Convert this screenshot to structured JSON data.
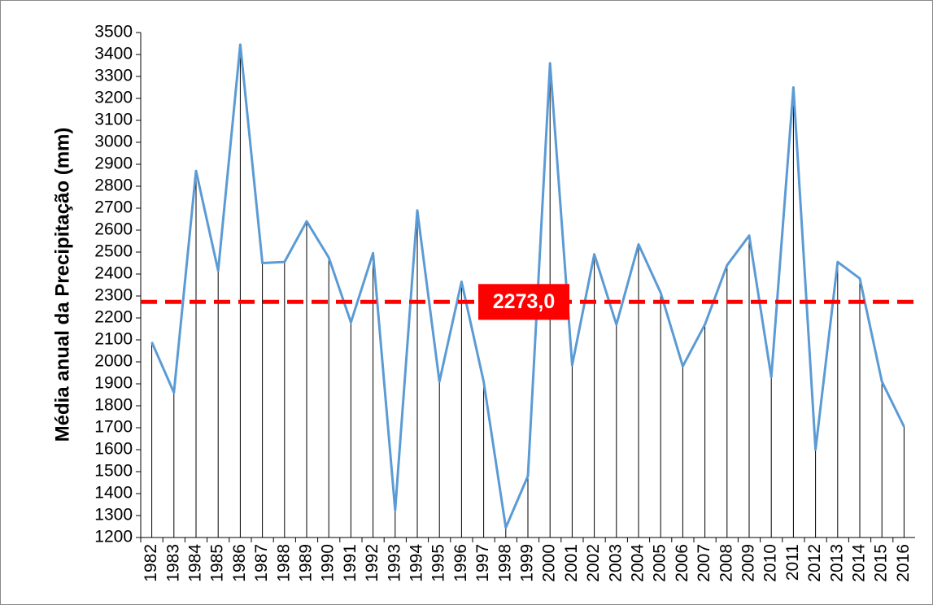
{
  "chart_data": {
    "type": "line",
    "y_label": "Média anual da Precipitação (mm)",
    "categories": [
      "1982",
      "1983",
      "1984",
      "1985",
      "1986",
      "1987",
      "1988",
      "1989",
      "1990",
      "1991",
      "1992",
      "1993",
      "1994",
      "1995",
      "1996",
      "1997",
      "1998",
      "1999",
      "2000",
      "2001",
      "2002",
      "2003",
      "2004",
      "2005",
      "2006",
      "2007",
      "2008",
      "2009",
      "2010",
      "2011",
      "2012",
      "2013",
      "2014",
      "2015",
      "2016"
    ],
    "series": [
      {
        "color": "#5b9bd5",
        "values": [
          2090,
          1860,
          2870,
          2415,
          3445,
          2450,
          2455,
          2640,
          2475,
          2180,
          2495,
          1325,
          2690,
          1910,
          2365,
          1910,
          1245,
          1480,
          3360,
          1985,
          2490,
          2170,
          2535,
          2315,
          1980,
          2170,
          2440,
          2575,
          1930,
          3250,
          1600,
          2455,
          2380,
          1910,
          1705
        ]
      }
    ],
    "mean": {
      "value": 2273,
      "label": "2273,0",
      "color": "#ff0000"
    },
    "ylim": [
      1200,
      3500
    ],
    "yticks": [
      1200,
      1300,
      1400,
      1500,
      1600,
      1700,
      1800,
      1900,
      2000,
      2100,
      2200,
      2300,
      2400,
      2500,
      2600,
      2700,
      2800,
      2900,
      3000,
      3100,
      3200,
      3300,
      3400,
      3500
    ],
    "grid": false
  }
}
